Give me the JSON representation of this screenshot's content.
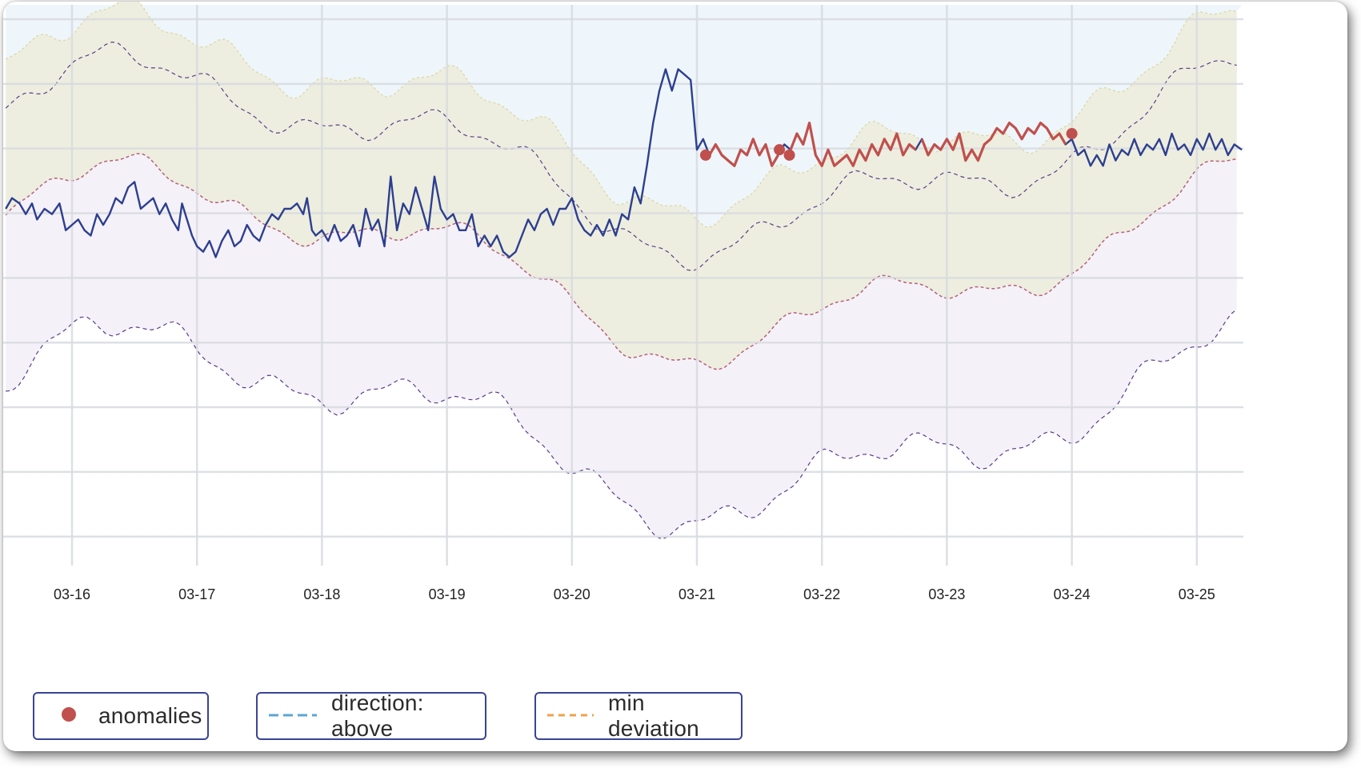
{
  "chart_data": {
    "type": "line",
    "title": "",
    "xlabel": "",
    "ylabel": "",
    "x_ticks": [
      "03-16",
      "03-17",
      "03-18",
      "03-19",
      "03-20",
      "03-21",
      "03-22",
      "03-23",
      "03-24",
      "03-25"
    ],
    "x_start": 15.47,
    "x_end": 25.36,
    "y_range": [
      0,
      100
    ],
    "grid": true,
    "series": [
      {
        "name": "value",
        "color": "#2e3f8f",
        "points": [
          [
            15.47,
            62
          ],
          [
            15.52,
            64
          ],
          [
            15.58,
            63
          ],
          [
            15.63,
            61
          ],
          [
            15.68,
            63
          ],
          [
            15.72,
            60
          ],
          [
            15.78,
            62
          ],
          [
            15.84,
            61
          ],
          [
            15.9,
            63
          ],
          [
            15.95,
            58
          ],
          [
            16.0,
            59
          ],
          [
            16.05,
            60
          ],
          [
            16.1,
            58
          ],
          [
            16.15,
            57
          ],
          [
            16.2,
            61
          ],
          [
            16.25,
            59
          ],
          [
            16.3,
            61
          ],
          [
            16.35,
            64
          ],
          [
            16.4,
            63
          ],
          [
            16.45,
            66
          ],
          [
            16.5,
            67
          ],
          [
            16.55,
            62
          ],
          [
            16.6,
            63
          ],
          [
            16.65,
            64
          ],
          [
            16.7,
            61
          ],
          [
            16.75,
            63
          ],
          [
            16.8,
            60
          ],
          [
            16.85,
            58
          ],
          [
            16.88,
            63
          ],
          [
            16.92,
            60
          ],
          [
            16.96,
            57
          ],
          [
            17.0,
            55
          ],
          [
            17.05,
            54
          ],
          [
            17.1,
            56
          ],
          [
            17.15,
            53
          ],
          [
            17.2,
            56
          ],
          [
            17.25,
            58
          ],
          [
            17.3,
            55
          ],
          [
            17.35,
            56
          ],
          [
            17.4,
            59
          ],
          [
            17.45,
            57
          ],
          [
            17.5,
            56
          ],
          [
            17.55,
            59
          ],
          [
            17.6,
            61
          ],
          [
            17.65,
            60
          ],
          [
            17.7,
            62
          ],
          [
            17.75,
            62
          ],
          [
            17.8,
            63
          ],
          [
            17.85,
            61
          ],
          [
            17.88,
            64
          ],
          [
            17.92,
            58
          ],
          [
            17.95,
            57
          ],
          [
            18.0,
            58
          ],
          [
            18.05,
            56
          ],
          [
            18.1,
            59
          ],
          [
            18.15,
            56
          ],
          [
            18.2,
            57
          ],
          [
            18.25,
            59
          ],
          [
            18.3,
            55
          ],
          [
            18.35,
            62
          ],
          [
            18.4,
            58
          ],
          [
            18.45,
            60
          ],
          [
            18.5,
            55
          ],
          [
            18.55,
            68
          ],
          [
            18.6,
            58
          ],
          [
            18.65,
            63
          ],
          [
            18.7,
            61
          ],
          [
            18.75,
            66
          ],
          [
            18.8,
            62
          ],
          [
            18.85,
            58
          ],
          [
            18.9,
            68
          ],
          [
            18.95,
            62
          ],
          [
            19.0,
            60
          ],
          [
            19.05,
            61
          ],
          [
            19.1,
            58
          ],
          [
            19.15,
            58
          ],
          [
            19.2,
            61
          ],
          [
            19.25,
            55
          ],
          [
            19.3,
            57
          ],
          [
            19.35,
            55
          ],
          [
            19.4,
            57
          ],
          [
            19.45,
            54
          ],
          [
            19.5,
            53
          ],
          [
            19.55,
            54
          ],
          [
            19.6,
            57
          ],
          [
            19.65,
            60
          ],
          [
            19.7,
            58
          ],
          [
            19.75,
            61
          ],
          [
            19.8,
            62
          ],
          [
            19.85,
            59
          ],
          [
            19.9,
            62
          ],
          [
            19.95,
            62
          ],
          [
            20.0,
            64
          ],
          [
            20.05,
            60
          ],
          [
            20.1,
            58
          ],
          [
            20.15,
            57
          ],
          [
            20.2,
            59
          ],
          [
            20.25,
            57
          ],
          [
            20.3,
            60
          ],
          [
            20.35,
            57
          ],
          [
            20.4,
            61
          ],
          [
            20.45,
            60
          ],
          [
            20.5,
            66
          ],
          [
            20.55,
            63
          ],
          [
            20.6,
            70
          ],
          [
            20.65,
            78
          ],
          [
            20.7,
            84
          ],
          [
            20.75,
            88
          ],
          [
            20.8,
            84
          ],
          [
            20.85,
            88
          ],
          [
            20.9,
            87
          ],
          [
            20.95,
            86
          ],
          [
            21.0,
            73
          ],
          [
            21.05,
            75
          ],
          [
            21.1,
            72
          ],
          [
            21.15,
            74
          ],
          [
            21.2,
            72
          ],
          [
            21.25,
            71
          ],
          [
            21.3,
            70
          ],
          [
            21.35,
            73
          ],
          [
            21.4,
            72
          ],
          [
            21.45,
            75
          ],
          [
            21.5,
            72
          ],
          [
            21.55,
            74
          ],
          [
            21.6,
            70
          ],
          [
            21.65,
            72
          ],
          [
            21.7,
            74
          ],
          [
            21.75,
            73
          ],
          [
            21.8,
            76
          ],
          [
            21.85,
            74
          ],
          [
            21.9,
            78
          ],
          [
            21.95,
            72
          ],
          [
            22.0,
            70
          ],
          [
            22.05,
            73
          ],
          [
            22.1,
            70
          ],
          [
            22.15,
            71
          ],
          [
            22.2,
            72
          ],
          [
            22.25,
            70
          ],
          [
            22.3,
            73
          ],
          [
            22.35,
            71
          ],
          [
            22.4,
            74
          ],
          [
            22.45,
            72
          ],
          [
            22.5,
            75
          ],
          [
            22.55,
            73
          ],
          [
            22.6,
            76
          ],
          [
            22.65,
            72
          ],
          [
            22.7,
            74
          ],
          [
            22.75,
            73
          ],
          [
            22.8,
            75
          ],
          [
            22.85,
            72
          ],
          [
            22.9,
            74
          ],
          [
            22.95,
            73
          ],
          [
            23.0,
            75
          ],
          [
            23.05,
            73
          ],
          [
            23.1,
            76
          ],
          [
            23.15,
            71
          ],
          [
            23.2,
            73
          ],
          [
            23.25,
            71
          ],
          [
            23.3,
            74
          ],
          [
            23.35,
            75
          ],
          [
            23.4,
            77
          ],
          [
            23.45,
            76
          ],
          [
            23.5,
            78
          ],
          [
            23.55,
            77
          ],
          [
            23.6,
            75
          ],
          [
            23.65,
            77
          ],
          [
            23.7,
            76
          ],
          [
            23.75,
            78
          ],
          [
            23.8,
            77
          ],
          [
            23.85,
            75
          ],
          [
            23.9,
            76
          ],
          [
            23.95,
            74
          ],
          [
            24.0,
            75
          ],
          [
            24.05,
            72
          ],
          [
            24.1,
            73
          ],
          [
            24.15,
            70
          ],
          [
            24.2,
            72
          ],
          [
            24.25,
            70
          ],
          [
            24.3,
            74
          ],
          [
            24.35,
            71
          ],
          [
            24.4,
            73
          ],
          [
            24.45,
            72
          ],
          [
            24.5,
            75
          ],
          [
            24.55,
            72
          ],
          [
            24.6,
            74
          ],
          [
            24.65,
            73
          ],
          [
            24.7,
            75
          ],
          [
            24.75,
            72
          ],
          [
            24.8,
            76
          ],
          [
            24.85,
            73
          ],
          [
            24.9,
            74
          ],
          [
            24.95,
            72
          ],
          [
            25.0,
            75
          ],
          [
            25.05,
            73
          ],
          [
            25.1,
            76
          ],
          [
            25.15,
            73
          ],
          [
            25.2,
            75
          ],
          [
            25.25,
            72
          ],
          [
            25.3,
            74
          ],
          [
            25.36,
            73
          ]
        ]
      }
    ],
    "anomalies": [
      [
        21.07,
        72
      ],
      [
        21.66,
        73
      ],
      [
        21.74,
        72
      ],
      [
        24.0,
        76
      ]
    ],
    "anomaly_runs": [
      [
        21.07,
        21.65
      ],
      [
        21.75,
        22.77
      ],
      [
        22.77,
        23.97
      ]
    ],
    "anomaly_color": "#c0504d",
    "bands": [
      {
        "name": "upper deviation band",
        "fill": "#edeedf"
      },
      {
        "name": "lower deviation band",
        "fill": "#f4f1f9"
      },
      {
        "name": "direction region",
        "fill": "#eef6fb"
      }
    ]
  },
  "legend": {
    "items": [
      {
        "label": "anomalies",
        "kind": "dot",
        "color": "#c0504d"
      },
      {
        "label": "direction: above",
        "kind": "dash",
        "color": "#5aa7d6"
      },
      {
        "label": "min deviation",
        "kind": "dash",
        "color": "#f0a04b"
      }
    ]
  }
}
